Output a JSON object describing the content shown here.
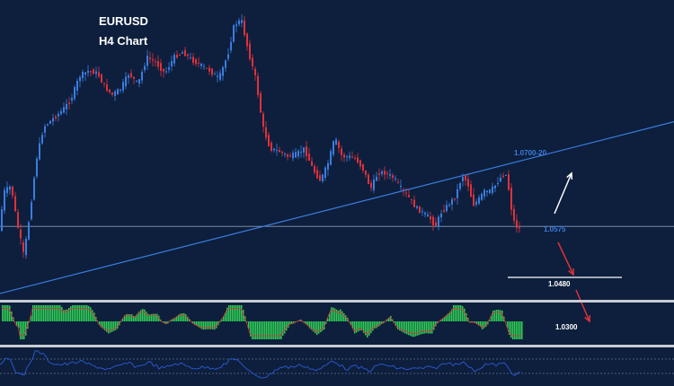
{
  "chart_data": {
    "type": "candlestick",
    "title": "EURUSD",
    "subtitle": "H4 Chart",
    "colors": {
      "background": "#0d1f3c",
      "bull": "#3b7de0",
      "bear": "#e0313b",
      "trendline": "#3b7de0",
      "level_line": "#8a9bb5",
      "arrow_up": "#ffffff",
      "arrow_down": "#e0313b",
      "macd_hist": "#2ecc55",
      "macd_signal": "#e0313b",
      "oscillator": "#2a55c8",
      "panel_separator": "#c8ccd4"
    },
    "price_path": [
      [
        0,
        1.056
      ],
      [
        6,
        1.064
      ],
      [
        14,
        1.065
      ],
      [
        20,
        1.0585
      ],
      [
        28,
        1.052
      ],
      [
        34,
        1.059
      ],
      [
        42,
        1.07
      ],
      [
        50,
        1.076
      ],
      [
        60,
        1.0775
      ],
      [
        70,
        1.079
      ],
      [
        80,
        1.081
      ],
      [
        90,
        1.0855
      ],
      [
        100,
        1.0865
      ],
      [
        110,
        1.086
      ],
      [
        118,
        1.0835
      ],
      [
        126,
        1.082
      ],
      [
        135,
        1.083
      ],
      [
        145,
        1.086
      ],
      [
        155,
        1.084
      ],
      [
        165,
        1.089
      ],
      [
        175,
        1.088
      ],
      [
        185,
        1.086
      ],
      [
        195,
        1.089
      ],
      [
        205,
        1.09
      ],
      [
        215,
        1.0885
      ],
      [
        225,
        1.0875
      ],
      [
        235,
        1.0865
      ],
      [
        245,
        1.085
      ],
      [
        255,
        1.0895
      ],
      [
        262,
        1.095
      ],
      [
        270,
        1.096
      ],
      [
        278,
        1.09
      ],
      [
        286,
        1.085
      ],
      [
        294,
        1.076
      ],
      [
        302,
        1.072
      ],
      [
        312,
        1.0715
      ],
      [
        322,
        1.0705
      ],
      [
        332,
        1.071
      ],
      [
        340,
        1.072
      ],
      [
        350,
        1.068
      ],
      [
        358,
        1.066
      ],
      [
        366,
        1.069
      ],
      [
        374,
        1.074
      ],
      [
        382,
        1.0705
      ],
      [
        390,
        1.0705
      ],
      [
        398,
        1.07
      ],
      [
        406,
        1.068
      ],
      [
        414,
        1.0645
      ],
      [
        422,
        1.0675
      ],
      [
        430,
        1.0675
      ],
      [
        440,
        1.0665
      ],
      [
        448,
        1.0645
      ],
      [
        456,
        1.063
      ],
      [
        464,
        1.061
      ],
      [
        472,
        1.06
      ],
      [
        480,
        1.059
      ],
      [
        486,
        1.0575
      ],
      [
        492,
        1.06
      ],
      [
        500,
        1.0615
      ],
      [
        508,
        1.063
      ],
      [
        516,
        1.067
      ],
      [
        522,
        1.0655
      ],
      [
        528,
        1.0615
      ],
      [
        534,
        1.0625
      ],
      [
        540,
        1.064
      ],
      [
        546,
        1.064
      ],
      [
        552,
        1.065
      ],
      [
        558,
        1.0665
      ],
      [
        564,
        1.0675
      ],
      [
        568,
        1.064
      ],
      [
        572,
        1.059
      ],
      [
        576,
        1.0575
      ],
      [
        580,
        1.057
      ]
    ],
    "trendline": {
      "from": [
        0,
        1.045
      ],
      "to": [
        750,
        1.077
      ]
    },
    "levels": [
      {
        "label": "1.0575",
        "value": 1.0575,
        "color": "#3b7de0"
      },
      {
        "label": "1.0480",
        "value": 1.048,
        "color": "#ffffff"
      },
      {
        "label": "1.0300",
        "value": 1.03,
        "color": "#ffffff"
      }
    ],
    "annotations": [
      {
        "label": "1.0700-20",
        "color": "#3b7de0"
      }
    ],
    "indicators": [
      "macd",
      "oscillator"
    ],
    "grid": false,
    "legend": "none"
  }
}
